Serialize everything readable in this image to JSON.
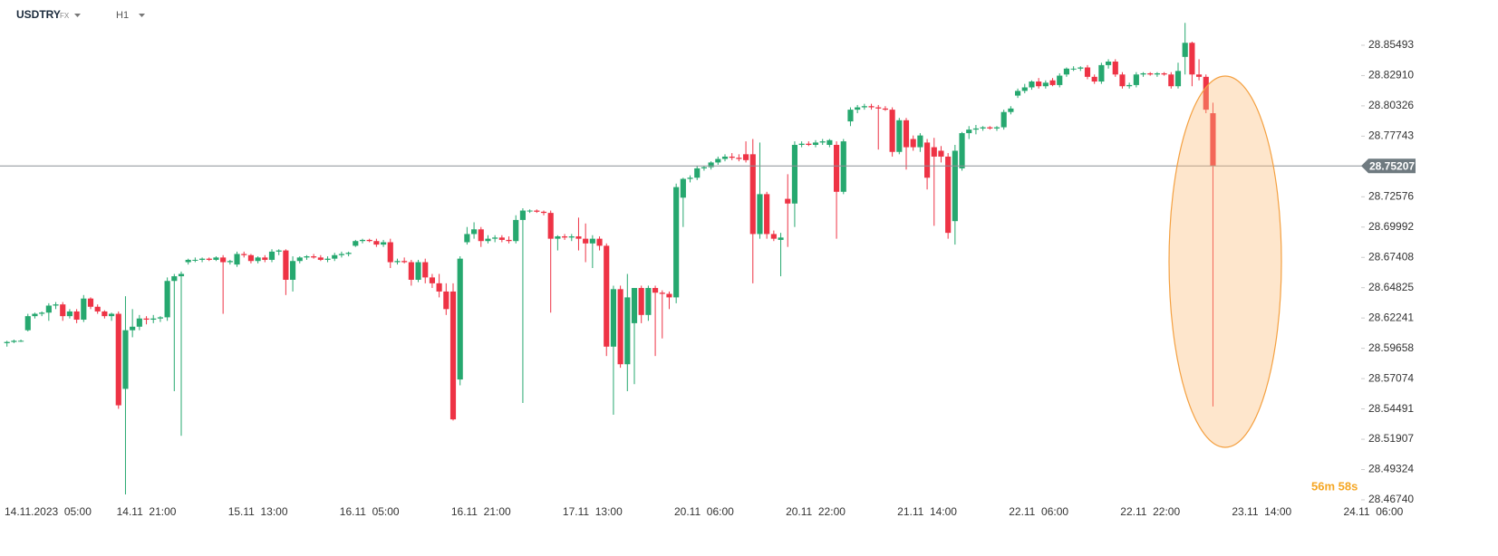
{
  "chart_data": {
    "type": "candlestick",
    "symbol": "USDTRY",
    "market": "FX",
    "timeframe": "H1",
    "countdown": "56m 58s",
    "current_price": 28.75207,
    "up_color": "#26a86f",
    "down_color": "#ee3345",
    "xlim": [
      -1,
      194
    ],
    "ylim": [
      28.4535,
      28.8935
    ],
    "yticks": [
      28.85493,
      {
        "value": 28.8291,
        "label": "28.82910"
      },
      28.80326,
      28.77743,
      28.72576,
      28.69992,
      28.67408,
      28.64825,
      28.62241,
      28.59658,
      28.57074,
      28.54491,
      28.51907,
      28.49324,
      {
        "value": 28.4674,
        "label": "28.46740"
      }
    ],
    "xticks": [
      {
        "value": 4,
        "label": "14.11.2023  05:00"
      },
      {
        "value": 20,
        "label": "14.11  21:00"
      },
      {
        "value": 36,
        "label": "15.11  13:00"
      },
      {
        "value": 52,
        "label": "16.11  05:00"
      },
      {
        "value": 68,
        "label": "16.11  21:00"
      },
      {
        "value": 84,
        "label": "17.11  13:00"
      },
      {
        "value": 100,
        "label": "20.11  06:00"
      },
      {
        "value": 116,
        "label": "20.11  22:00"
      },
      {
        "value": 132,
        "label": "21.11  14:00"
      },
      {
        "value": 148,
        "label": "22.11  06:00"
      },
      {
        "value": 164,
        "label": "22.11  22:00"
      },
      {
        "value": 180,
        "label": "23.11  14:00"
      },
      {
        "value": 196,
        "label": "24.11  06:00"
      }
    ],
    "ohlc": [
      [
        28.601,
        28.603,
        28.598,
        28.602
      ],
      [
        28.602,
        28.604,
        28.601,
        28.603
      ],
      [
        28.603,
        28.604,
        28.602,
        28.603
      ],
      [
        28.612,
        28.626,
        28.611,
        28.624
      ],
      [
        28.624,
        28.627,
        28.622,
        28.626
      ],
      [
        28.626,
        28.628,
        28.624,
        28.627
      ],
      [
        28.627,
        28.635,
        28.62,
        28.633
      ],
      [
        28.633,
        28.636,
        28.63,
        28.634
      ],
      [
        28.634,
        28.636,
        28.62,
        28.624
      ],
      [
        28.624,
        28.63,
        28.622,
        28.628
      ],
      [
        28.628,
        28.63,
        28.618,
        28.621
      ],
      [
        28.621,
        28.642,
        28.619,
        28.639
      ],
      [
        28.639,
        28.64,
        28.63,
        28.632
      ],
      [
        28.632,
        28.634,
        28.626,
        28.628
      ],
      [
        28.628,
        28.629,
        28.622,
        28.624
      ],
      [
        28.624,
        28.627,
        28.62,
        28.626
      ],
      [
        28.626,
        28.628,
        28.545,
        28.548
      ],
      [
        28.562,
        28.641,
        28.472,
        28.612
      ],
      [
        28.612,
        28.63,
        28.606,
        28.615
      ],
      [
        28.615,
        28.625,
        28.612,
        28.622
      ],
      [
        28.622,
        28.624,
        28.617,
        28.621
      ],
      [
        28.621,
        28.625,
        28.618,
        28.622
      ],
      [
        28.622,
        28.624,
        28.619,
        28.623
      ],
      [
        28.623,
        28.657,
        28.62,
        28.654
      ],
      [
        28.654,
        28.66,
        28.56,
        28.658
      ],
      [
        28.658,
        28.662,
        28.522,
        28.66
      ],
      [
        28.67,
        28.673,
        28.668,
        28.672
      ],
      [
        28.672,
        28.674,
        28.67,
        28.672
      ],
      [
        28.672,
        28.674,
        28.67,
        28.673
      ],
      [
        28.673,
        28.674,
        28.671,
        28.672
      ],
      [
        28.672,
        28.675,
        28.671,
        28.674
      ],
      [
        28.674,
        28.676,
        28.626,
        28.67
      ],
      [
        28.67,
        28.672,
        28.668,
        28.671
      ],
      [
        28.668,
        28.679,
        28.666,
        28.677
      ],
      [
        28.677,
        28.679,
        28.674,
        28.676
      ],
      [
        28.676,
        28.677,
        28.669,
        28.671
      ],
      [
        28.671,
        28.675,
        28.669,
        28.674
      ],
      [
        28.674,
        28.676,
        28.67,
        28.672
      ],
      [
        28.672,
        28.681,
        28.67,
        28.679
      ],
      [
        28.679,
        28.681,
        28.676,
        28.68
      ],
      [
        28.68,
        28.681,
        28.642,
        28.655
      ],
      [
        28.655,
        28.675,
        28.645,
        28.671
      ],
      [
        28.671,
        28.675,
        28.669,
        28.674
      ],
      [
        28.674,
        28.676,
        28.672,
        28.675
      ],
      [
        28.675,
        28.677,
        28.673,
        28.674
      ],
      [
        28.674,
        28.676,
        28.671,
        28.672
      ],
      [
        28.672,
        28.675,
        28.67,
        28.673
      ],
      [
        28.673,
        28.678,
        28.671,
        28.676
      ],
      [
        28.676,
        28.679,
        28.674,
        28.677
      ],
      [
        28.677,
        28.679,
        28.675,
        28.678
      ],
      [
        28.684,
        28.689,
        28.683,
        28.688
      ],
      [
        28.688,
        28.69,
        28.686,
        28.689
      ],
      [
        28.689,
        28.69,
        28.687,
        28.688
      ],
      [
        28.688,
        28.69,
        28.683,
        28.685
      ],
      [
        28.685,
        28.689,
        28.683,
        28.687
      ],
      [
        28.687,
        28.69,
        28.665,
        28.67
      ],
      [
        28.67,
        28.673,
        28.668,
        28.671
      ],
      [
        28.671,
        28.674,
        28.669,
        28.67
      ],
      [
        28.67,
        28.672,
        28.65,
        28.655
      ],
      [
        28.655,
        28.672,
        28.653,
        28.67
      ],
      [
        28.67,
        28.673,
        28.652,
        28.657
      ],
      [
        28.657,
        28.66,
        28.648,
        28.652
      ],
      [
        28.652,
        28.66,
        28.64,
        28.645
      ],
      [
        28.645,
        28.652,
        28.625,
        28.63
      ],
      [
        28.645,
        28.652,
        28.535,
        28.536
      ],
      [
        28.57,
        28.675,
        28.565,
        28.673
      ],
      [
        28.687,
        28.7,
        28.685,
        28.694
      ],
      [
        28.694,
        28.704,
        28.69,
        28.698
      ],
      [
        28.698,
        28.7,
        28.683,
        28.688
      ],
      [
        28.688,
        28.693,
        28.686,
        28.69
      ],
      [
        28.69,
        28.693,
        28.687,
        28.691
      ],
      [
        28.691,
        28.693,
        28.687,
        28.689
      ],
      [
        28.689,
        28.692,
        28.686,
        28.688
      ],
      [
        28.688,
        28.71,
        28.686,
        28.706
      ],
      [
        28.706,
        28.716,
        28.55,
        28.714
      ],
      [
        28.714,
        28.715,
        28.712,
        28.714
      ],
      [
        28.714,
        28.715,
        28.712,
        28.713
      ],
      [
        28.713,
        28.714,
        28.71,
        28.712
      ],
      [
        28.712,
        28.714,
        28.627,
        28.69
      ],
      [
        28.69,
        28.693,
        28.68,
        28.692
      ],
      [
        28.692,
        28.694,
        28.689,
        28.691
      ],
      [
        28.691,
        28.694,
        28.688,
        28.692
      ],
      [
        28.692,
        28.708,
        28.68,
        28.69
      ],
      [
        28.69,
        28.703,
        28.67,
        28.686
      ],
      [
        28.686,
        28.693,
        28.665,
        28.69
      ],
      [
        28.69,
        28.692,
        28.68,
        28.684
      ],
      [
        28.684,
        28.686,
        28.59,
        28.598
      ],
      [
        28.598,
        28.65,
        28.54,
        28.647
      ],
      [
        28.647,
        28.65,
        28.58,
        28.583
      ],
      [
        28.583,
        28.66,
        28.56,
        28.64
      ],
      [
        28.618,
        28.648,
        28.566,
        28.648
      ],
      [
        28.648,
        28.65,
        28.618,
        28.625
      ],
      [
        28.625,
        28.65,
        28.62,
        28.648
      ],
      [
        28.648,
        28.65,
        28.59,
        28.644
      ],
      [
        28.644,
        28.646,
        28.605,
        28.643
      ],
      [
        28.643,
        28.645,
        28.63,
        28.64
      ],
      [
        28.64,
        28.737,
        28.635,
        28.734
      ],
      [
        28.725,
        28.742,
        28.7,
        28.741
      ],
      [
        28.741,
        28.744,
        28.738,
        28.742
      ],
      [
        28.742,
        28.752,
        28.74,
        28.75
      ],
      [
        28.75,
        28.752,
        28.748,
        28.751
      ],
      [
        28.751,
        28.756,
        28.749,
        28.755
      ],
      [
        28.755,
        28.76,
        28.753,
        28.758
      ],
      [
        28.758,
        28.762,
        28.756,
        28.76
      ],
      [
        28.76,
        28.763,
        28.757,
        28.759
      ],
      [
        28.759,
        28.762,
        28.756,
        28.758
      ],
      [
        28.762,
        28.773,
        28.755,
        28.757
      ],
      [
        28.762,
        28.775,
        28.652,
        28.694
      ],
      [
        28.694,
        28.772,
        28.69,
        28.728
      ],
      [
        28.728,
        28.73,
        28.69,
        28.694
      ],
      [
        28.694,
        28.697,
        28.688,
        28.69
      ],
      [
        28.689,
        28.695,
        28.658,
        28.691
      ],
      [
        28.724,
        28.745,
        28.683,
        28.72
      ],
      [
        28.72,
        28.773,
        28.7,
        28.77
      ],
      [
        28.77,
        28.773,
        28.768,
        28.771
      ],
      [
        28.771,
        28.773,
        28.769,
        28.77
      ],
      [
        28.77,
        28.774,
        28.768,
        28.772
      ],
      [
        28.772,
        28.775,
        28.77,
        28.773
      ],
      [
        28.77,
        28.775,
        28.768,
        28.774
      ],
      [
        28.77,
        28.773,
        28.69,
        28.73
      ],
      [
        28.73,
        28.775,
        28.728,
        28.773
      ],
      [
        28.79,
        28.802,
        28.786,
        28.8
      ],
      [
        28.8,
        28.804,
        28.797,
        28.802
      ],
      [
        28.802,
        28.805,
        28.8,
        28.803
      ],
      [
        28.803,
        28.805,
        28.8,
        28.802
      ],
      [
        28.802,
        28.804,
        28.766,
        28.801
      ],
      [
        28.801,
        28.803,
        28.799,
        28.8
      ],
      [
        28.8,
        28.802,
        28.76,
        28.764
      ],
      [
        28.764,
        28.793,
        28.762,
        28.791
      ],
      [
        28.791,
        28.793,
        28.749,
        28.768
      ],
      [
        28.775,
        28.778,
        28.765,
        28.768
      ],
      [
        28.768,
        28.78,
        28.764,
        28.778
      ],
      [
        28.772,
        28.775,
        28.732,
        28.742
      ],
      [
        28.768,
        28.776,
        28.701,
        28.76
      ],
      [
        28.765,
        28.769,
        28.755,
        28.76
      ],
      [
        28.76,
        28.763,
        28.69,
        28.695
      ],
      [
        28.705,
        28.77,
        28.685,
        28.765
      ],
      [
        28.75,
        28.781,
        28.748,
        28.78
      ],
      [
        28.78,
        28.786,
        28.775,
        28.783
      ],
      [
        28.783,
        28.787,
        28.779,
        28.784
      ],
      [
        28.784,
        28.786,
        28.782,
        28.785
      ],
      [
        28.785,
        28.786,
        28.783,
        28.784
      ],
      [
        28.784,
        28.786,
        28.782,
        28.785
      ],
      [
        28.785,
        28.8,
        28.783,
        28.798
      ],
      [
        28.798,
        28.803,
        28.796,
        28.801
      ],
      [
        28.812,
        28.818,
        28.81,
        28.816
      ],
      [
        28.816,
        28.822,
        28.814,
        28.819
      ],
      [
        28.819,
        28.825,
        28.817,
        28.824
      ],
      [
        28.824,
        28.827,
        28.818,
        28.82
      ],
      [
        28.82,
        28.825,
        28.818,
        28.823
      ],
      [
        28.825,
        28.827,
        28.82,
        28.821
      ],
      [
        28.821,
        28.831,
        28.819,
        28.829
      ],
      [
        28.83,
        28.836,
        28.828,
        28.835
      ],
      [
        28.835,
        28.837,
        28.833,
        28.835
      ],
      [
        28.835,
        28.837,
        28.833,
        28.836
      ],
      [
        28.836,
        28.838,
        28.826,
        28.828
      ],
      [
        28.828,
        28.83,
        28.822,
        28.824
      ],
      [
        28.824,
        28.84,
        28.822,
        28.838
      ],
      [
        28.838,
        28.843,
        28.835,
        28.841
      ],
      [
        28.841,
        28.843,
        28.828,
        28.83
      ],
      [
        28.83,
        28.832,
        28.818,
        28.82
      ],
      [
        28.82,
        28.823,
        28.818,
        28.821
      ],
      [
        28.821,
        28.832,
        28.819,
        28.83
      ],
      [
        28.83,
        28.832,
        28.828,
        28.831
      ],
      [
        28.831,
        28.832,
        28.829,
        28.83
      ],
      [
        28.83,
        28.832,
        28.828,
        28.831
      ],
      [
        28.831,
        28.832,
        28.829,
        28.83
      ],
      [
        28.83,
        28.832,
        28.818,
        28.82
      ],
      [
        28.82,
        28.84,
        28.818,
        28.833
      ],
      [
        28.845,
        28.874,
        28.83,
        28.857
      ],
      [
        28.857,
        28.858,
        28.82,
        28.83
      ],
      [
        28.83,
        28.843,
        28.825,
        28.828
      ],
      [
        28.828,
        28.83,
        28.797,
        28.8
      ],
      [
        28.797,
        28.806,
        28.547,
        28.752
      ]
    ]
  }
}
